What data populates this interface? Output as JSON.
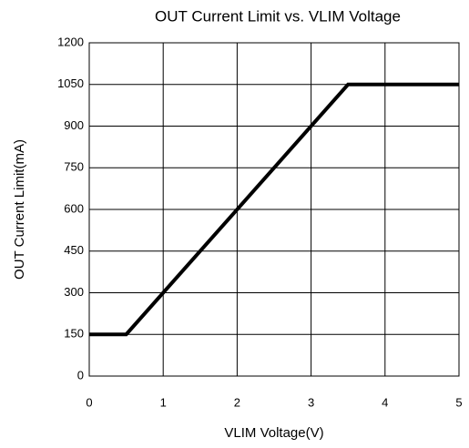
{
  "chart_data": {
    "type": "line",
    "title": "OUT Current Limit vs. VLIM Voltage",
    "x_label": "VLIM Voltage(V)",
    "y_label": "OUT Current Limit(mA)",
    "x": [
      0,
      0.5,
      3.5,
      5
    ],
    "series": [
      {
        "name": "OUT Current Limit",
        "color": "#000000",
        "values": [
          150,
          150,
          1050,
          1050
        ]
      }
    ],
    "xlim": [
      0,
      5
    ],
    "xticks": [
      0,
      1,
      2,
      3,
      4,
      5
    ],
    "ylim": [
      0,
      1200
    ],
    "yticks": [
      0,
      150,
      300,
      450,
      600,
      750,
      900,
      1050,
      1200
    ],
    "grid": true
  }
}
